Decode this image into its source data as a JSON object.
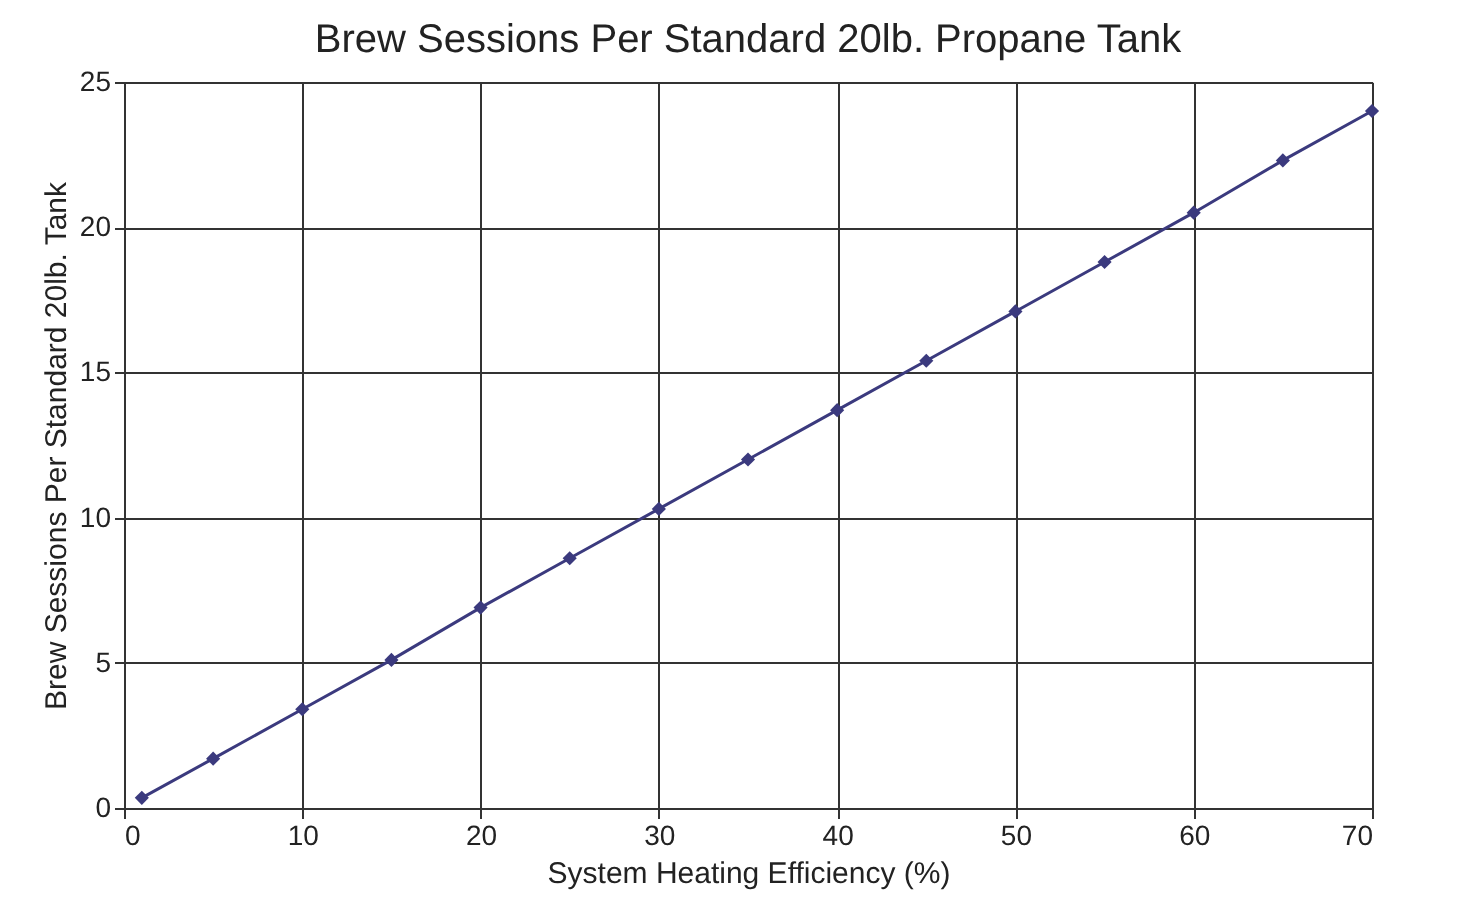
{
  "chart_data": {
    "type": "line",
    "title": "Brew Sessions Per Standard 20lb. Propane Tank",
    "xlabel": "System Heating Efficiency (%)",
    "ylabel": "Brew Sessions Per Standard 20lb. Tank",
    "x": [
      1,
      5,
      10,
      15,
      20,
      25,
      30,
      35,
      40,
      45,
      50,
      55,
      60,
      65,
      70
    ],
    "series": [
      {
        "color": "#3b3a7e",
        "values": [
          0.35,
          1.7,
          3.4,
          5.1,
          6.9,
          8.6,
          10.3,
          12.0,
          13.7,
          15.4,
          17.1,
          18.8,
          20.5,
          22.3,
          24.0
        ]
      }
    ],
    "xlim": [
      0,
      70
    ],
    "xticks": [
      0,
      10,
      20,
      30,
      40,
      50,
      60,
      70
    ],
    "ylim": [
      0,
      25
    ],
    "yticks": [
      0,
      5,
      10,
      15,
      20,
      25
    ],
    "grid": true,
    "marker": "diamond",
    "line_style": "solid"
  }
}
